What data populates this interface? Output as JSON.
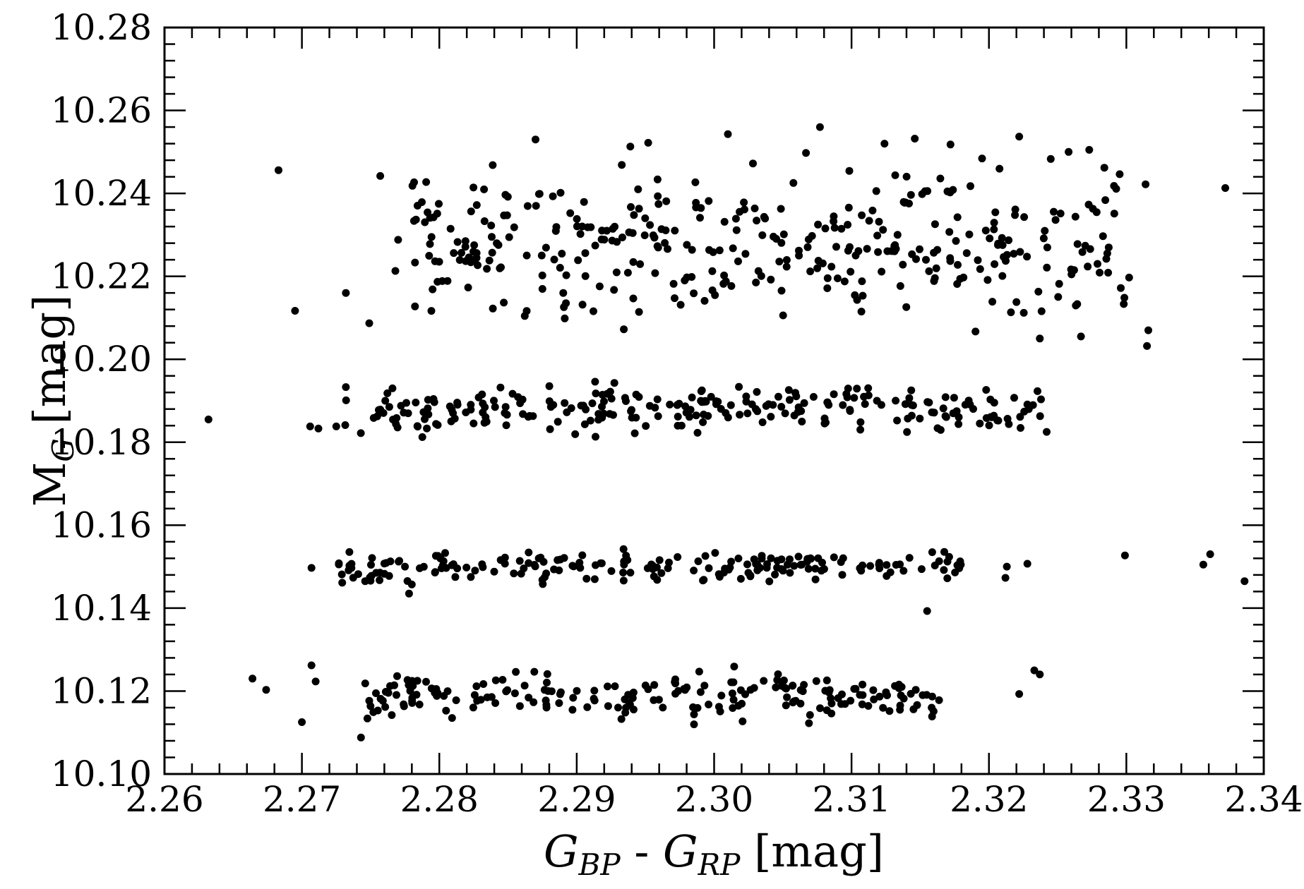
{
  "chart_data": {
    "type": "scatter",
    "title": "",
    "xlabel": "G_BP - G_RP [mag]",
    "ylabel": "M_G [mag]",
    "xlabel_parts": {
      "main1": "G",
      "sub1": "BP",
      "mid": " - ",
      "main2": "G",
      "sub2": "RP",
      "unit": " [mag]"
    },
    "ylabel_parts": {
      "main": "M",
      "sub": "G",
      "unit": " [mag]"
    },
    "xlim": [
      2.26,
      2.34
    ],
    "ylim": [
      10.1,
      10.28
    ],
    "xticks": [
      "2.26",
      "2.27",
      "2.28",
      "2.29",
      "2.30",
      "2.31",
      "2.32",
      "2.33",
      "2.34"
    ],
    "yticks": [
      "10.10",
      "10.12",
      "10.14",
      "10.16",
      "10.18",
      "10.20",
      "10.22",
      "10.24",
      "10.26",
      "10.28"
    ],
    "marker_color": "#000000",
    "grid": false,
    "bands": [
      {
        "y_center": 10.119,
        "y_spread": 0.0045,
        "x_range": [
          2.2745,
          2.3165
        ],
        "n": 200
      },
      {
        "y_center": 10.15,
        "y_spread": 0.003,
        "x_range": [
          2.272,
          2.318
        ],
        "n": 190
      },
      {
        "y_center": 10.188,
        "y_spread": 0.005,
        "x_range": [
          2.273,
          2.324
        ],
        "n": 250
      },
      {
        "y_center": 10.228,
        "y_spread": 0.015,
        "x_range": [
          2.278,
          2.33
        ],
        "n": 360
      }
    ],
    "points": [
      [
        2.2632,
        10.1855
      ],
      [
        2.2695,
        10.2117
      ],
      [
        2.2683,
        10.2456
      ],
      [
        2.2757,
        10.2442
      ],
      [
        2.2732,
        10.216
      ],
      [
        2.2749,
        10.2087
      ],
      [
        2.277,
        10.2288
      ],
      [
        2.2768,
        10.2213
      ],
      [
        2.2706,
        10.1838
      ],
      [
        2.2712,
        10.1833
      ],
      [
        2.2725,
        10.1838
      ],
      [
        2.2732,
        10.1933
      ],
      [
        2.2664,
        10.123
      ],
      [
        2.2674,
        10.1203
      ],
      [
        2.27,
        10.1125
      ],
      [
        2.2707,
        10.1262
      ],
      [
        2.271,
        10.1223
      ],
      [
        2.2743,
        10.1088
      ],
      [
        2.2752,
        10.1149
      ],
      [
        2.2707,
        10.1497
      ],
      [
        2.2741,
        10.1482
      ],
      [
        2.2746,
        10.1465
      ],
      [
        2.275,
        10.1466
      ],
      [
        2.2778,
        10.1435
      ],
      [
        2.278,
        10.1457
      ],
      [
        2.2797,
        10.1487
      ],
      [
        2.3155,
        10.1393
      ],
      [
        2.3212,
        10.1473
      ],
      [
        2.3213,
        10.15
      ],
      [
        2.3228,
        10.1507
      ],
      [
        2.3233,
        10.125
      ],
      [
        2.3237,
        10.124
      ],
      [
        2.3222,
        10.1193
      ],
      [
        2.3299,
        10.1527
      ],
      [
        2.3356,
        10.1505
      ],
      [
        2.3361,
        10.153
      ],
      [
        2.3386,
        10.1465
      ],
      [
        2.3315,
        10.2032
      ],
      [
        2.3316,
        10.207
      ],
      [
        2.3302,
        10.2197
      ],
      [
        2.3314,
        10.2422
      ],
      [
        2.3372,
        10.2413
      ],
      [
        2.3291,
        10.2418
      ],
      [
        2.3273,
        10.2505
      ],
      [
        2.3284,
        10.2462
      ],
      [
        2.3283,
        10.2297
      ],
      [
        2.3279,
        10.223
      ],
      [
        2.3262,
        10.2215
      ],
      [
        2.3267,
        10.2055
      ],
      [
        2.3222,
        10.2537
      ],
      [
        2.3245,
        10.2483
      ],
      [
        2.3258,
        10.25
      ],
      [
        2.3237,
        10.205
      ],
      [
        2.3236,
        10.2163
      ],
      [
        2.3242,
        10.1825
      ],
      [
        2.3229,
        10.188
      ],
      [
        2.301,
        10.2543
      ],
      [
        2.287,
        10.253
      ],
      [
        2.3077,
        10.256
      ],
      [
        2.3124,
        10.252
      ],
      [
        2.3146,
        10.2532
      ],
      [
        2.3172,
        10.2518
      ],
      [
        2.2939,
        10.2513
      ],
      [
        2.2952,
        10.2522
      ]
    ]
  }
}
